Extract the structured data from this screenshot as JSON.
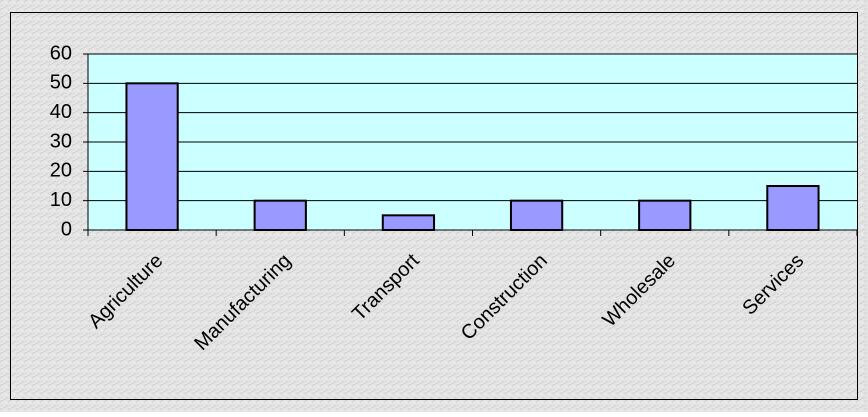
{
  "chart_data": {
    "type": "bar",
    "categories": [
      "Agriculture",
      "Manufacturing",
      "Transport",
      "Construction",
      "Wholesale",
      "Services"
    ],
    "values": [
      50,
      10,
      5,
      10,
      10,
      15
    ],
    "color": "#9999ff",
    "ylim": [
      0,
      60
    ],
    "yticks": [
      0,
      10,
      20,
      30,
      40,
      50,
      60
    ],
    "grid": true
  }
}
